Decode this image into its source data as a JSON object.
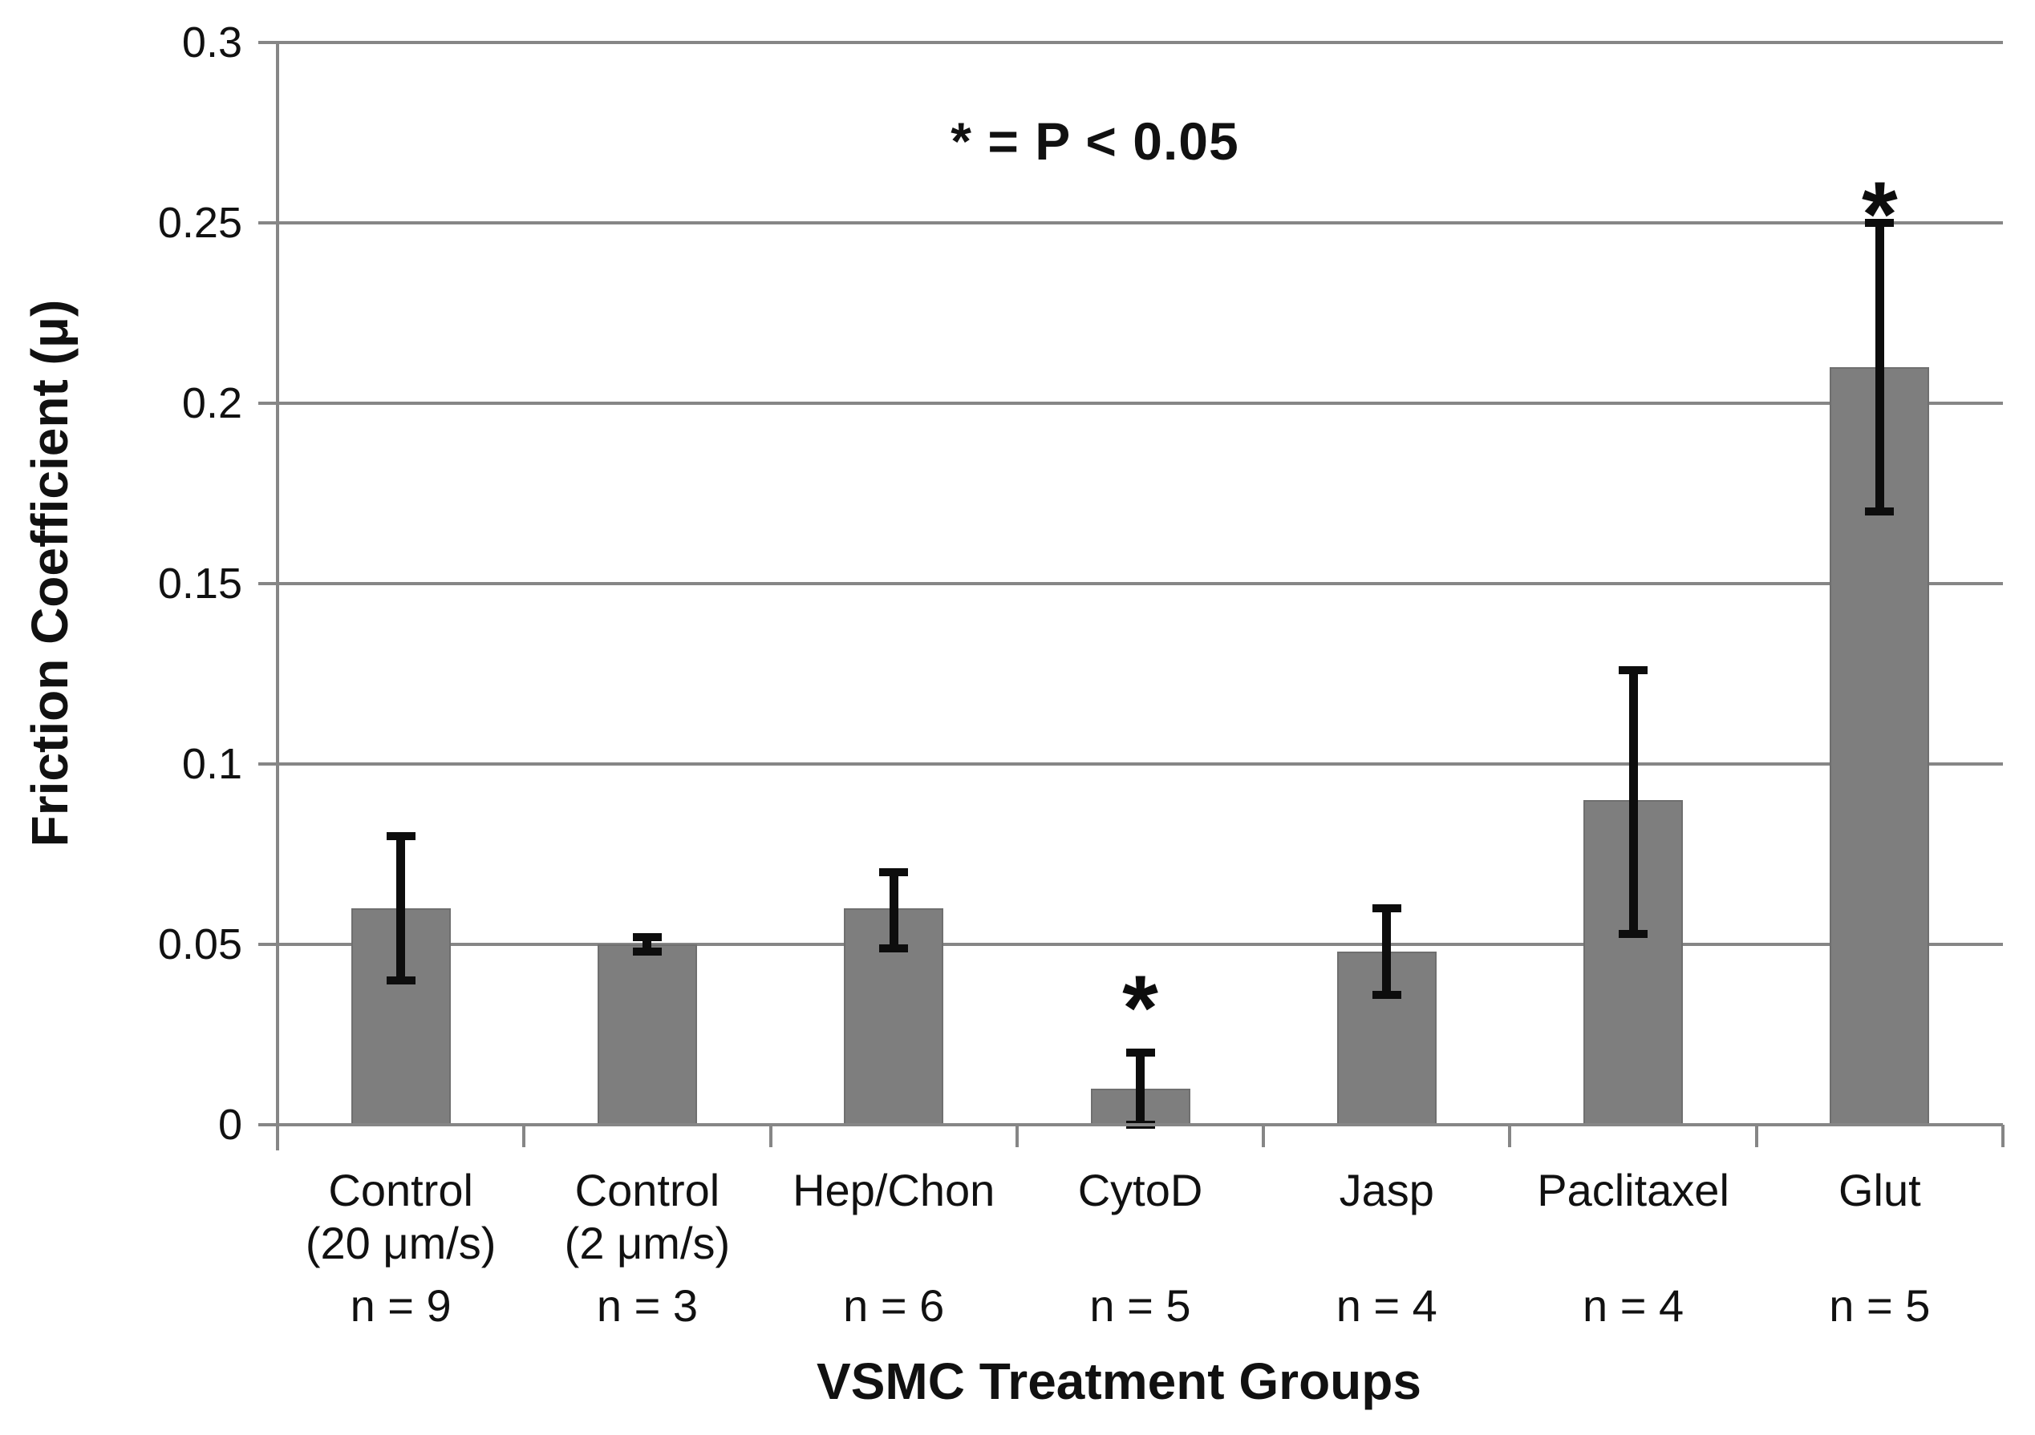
{
  "chart_data": {
    "type": "bar",
    "title": "",
    "xlabel": "VSMC Treatment Groups",
    "ylabel": "Friction Coefficient (μ)",
    "annotation": "* = P < 0.05",
    "sig_marker": "*",
    "ylim": [
      0,
      0.3
    ],
    "ytick_interval": 0.05,
    "grid": "horizontal",
    "legend": "none",
    "bar_color": "#7e7e7e",
    "bar_border_color": "#6f6f6f",
    "grid_color": "#868686",
    "error_bar_color": "#0d0d0d",
    "yticks": [
      {
        "label": "0",
        "value": 0
      },
      {
        "label": "0.05",
        "value": 0.05
      },
      {
        "label": "0.1",
        "value": 0.1
      },
      {
        "label": "0.15",
        "value": 0.15
      },
      {
        "label": "0.2",
        "value": 0.2
      },
      {
        "label": "0.25",
        "value": 0.25
      },
      {
        "label": "0.3",
        "value": 0.3
      }
    ],
    "categories": [
      {
        "label_lines": [
          "Control",
          "(20 μm/s)"
        ],
        "n_label": "n = 9",
        "value": 0.06,
        "error_low": 0.04,
        "error_high": 0.08,
        "significant": false,
        "star_value": null
      },
      {
        "label_lines": [
          "Control",
          "(2 μm/s)"
        ],
        "n_label": "n = 3",
        "value": 0.05,
        "error_low": 0.048,
        "error_high": 0.052,
        "significant": false,
        "star_value": null
      },
      {
        "label_lines": [
          "Hep/Chon"
        ],
        "n_label": "n = 6",
        "value": 0.06,
        "error_low": 0.049,
        "error_high": 0.07,
        "significant": false,
        "star_value": null
      },
      {
        "label_lines": [
          "CytoD"
        ],
        "n_label": "n = 5",
        "value": 0.01,
        "error_low": 0.0,
        "error_high": 0.02,
        "significant": true,
        "star_value": 0.037
      },
      {
        "label_lines": [
          "Jasp"
        ],
        "n_label": "n = 4",
        "value": 0.048,
        "error_low": 0.036,
        "error_high": 0.06,
        "significant": false,
        "star_value": null
      },
      {
        "label_lines": [
          "Paclitaxel"
        ],
        "n_label": "n = 4",
        "value": 0.09,
        "error_low": 0.053,
        "error_high": 0.126,
        "significant": false,
        "star_value": null
      },
      {
        "label_lines": [
          "Glut"
        ],
        "n_label": "n = 5",
        "value": 0.21,
        "error_low": 0.17,
        "error_high": 0.25,
        "significant": true,
        "star_value": 0.257
      }
    ]
  }
}
